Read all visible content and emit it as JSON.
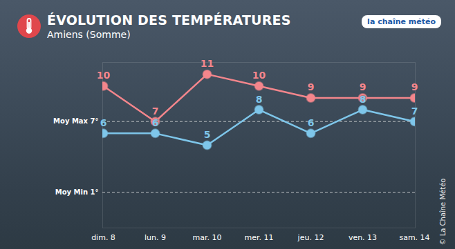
{
  "chart_data": {
    "type": "line",
    "title": "ÉVOLUTION DES TEMPÉRATURES",
    "subtitle": "Amiens (Somme)",
    "logo": "la chaîne météo",
    "source": "© La Chaîne Météo",
    "categories": [
      "dim. 8",
      "lun. 9",
      "mar. 10",
      "mer. 11",
      "jeu. 12",
      "ven. 13",
      "sam. 14"
    ],
    "series": [
      {
        "color": "#f4868c",
        "marker": "circle",
        "values": [
          10,
          7,
          11,
          10,
          9,
          9,
          9
        ]
      },
      {
        "color": "#7ec6ea",
        "marker": "circle",
        "values": [
          6,
          6,
          5,
          8,
          6,
          8,
          7
        ]
      }
    ],
    "reference_lines": [
      {
        "label": "Moy Max 7°",
        "value": 7
      },
      {
        "label": "Moy Min 1°",
        "value": 1
      }
    ],
    "ylim": [
      -2,
      12
    ],
    "yticks": [],
    "grid": false,
    "data_labels": true,
    "tick_labels": "x"
  }
}
